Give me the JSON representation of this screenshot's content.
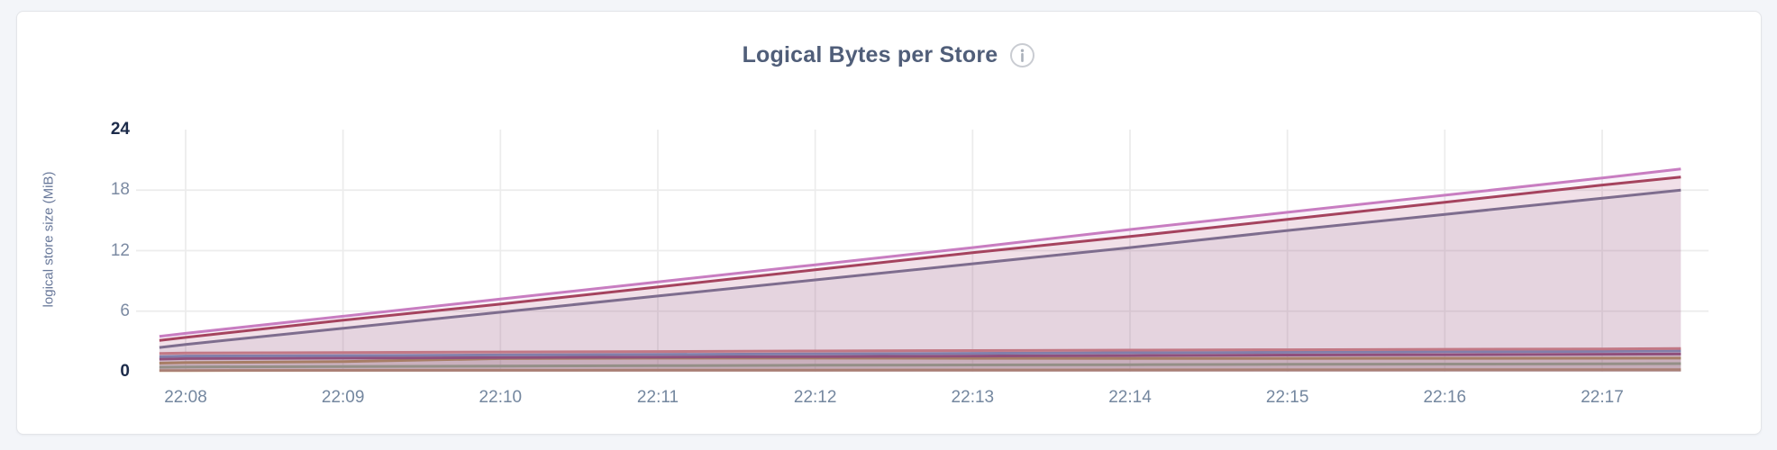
{
  "page": {
    "background_color": "#f3f5f9",
    "card_color": "#ffffff",
    "gridline_color": "#ececec"
  },
  "header": {
    "info_icon": "info-circle",
    "info_icon_color": "#c9ccd2"
  },
  "chart_data": {
    "type": "area",
    "title": "Logical Bytes per Store",
    "xlabel": "",
    "ylabel": "logical store size (MiB)",
    "ylim": [
      0,
      24
    ],
    "legend": "none",
    "grid": true,
    "y_axis": {
      "label": "logical store size (MiB)",
      "ticks": [
        {
          "label": "24",
          "value": 24,
          "bold": true
        },
        {
          "label": "18",
          "value": 18,
          "bold": false
        },
        {
          "label": "12",
          "value": 12,
          "bold": false
        },
        {
          "label": "6",
          "value": 6,
          "bold": false
        },
        {
          "label": "0",
          "value": 0,
          "bold": true
        }
      ],
      "gridline_values": [
        6,
        12,
        18
      ]
    },
    "x_axis": {
      "tick_labels": [
        "22:08",
        "22:09",
        "22:10",
        "22:11",
        "22:12",
        "22:13",
        "22:14",
        "22:15",
        "22:16",
        "22:17"
      ],
      "tick_interval_s": 60,
      "data_start_offset_s": -10,
      "data_end_offset_s": 570
    },
    "series": [
      {
        "id": "s1",
        "color": "#c87dc1",
        "start": 3.5,
        "values": [
          3.8,
          5.5,
          7.2,
          8.9,
          10.6,
          12.3,
          14.1,
          15.8,
          17.5,
          19.2
        ],
        "end": 20.1
      },
      {
        "id": "s2",
        "color": "#a23d53",
        "start": 3.1,
        "values": [
          3.4,
          5.1,
          6.7,
          8.4,
          10.1,
          11.8,
          13.4,
          15.1,
          16.8,
          18.5
        ],
        "end": 19.3
      },
      {
        "id": "s3",
        "color": "#71718f",
        "start": 2.4,
        "values": [
          2.7,
          4.3,
          5.9,
          7.5,
          9.1,
          10.7,
          12.3,
          14.0,
          15.6,
          17.2
        ],
        "end": 18.0
      },
      {
        "id": "s4",
        "color": "#d08083",
        "start": 1.8,
        "values": [
          1.85,
          1.9,
          1.95,
          2.0,
          2.05,
          2.1,
          2.14,
          2.18,
          2.22,
          2.26
        ],
        "end": 2.3
      },
      {
        "id": "s5",
        "color": "#6e8abc",
        "start": 1.5,
        "values": [
          1.55,
          1.6,
          1.66,
          1.71,
          1.77,
          1.82,
          1.88,
          1.93,
          1.98,
          2.02
        ],
        "end": 2.05
      },
      {
        "id": "s6",
        "color": "#833a70",
        "start": 1.25,
        "values": [
          1.3,
          1.35,
          1.4,
          1.45,
          1.5,
          1.55,
          1.6,
          1.65,
          1.69,
          1.73
        ],
        "end": 1.75
      },
      {
        "id": "s7",
        "color": "#b39346",
        "start": 0.85,
        "values": [
          0.9,
          1.0,
          1.3,
          1.35,
          1.35,
          1.33,
          1.32,
          1.32,
          1.33,
          1.34
        ],
        "end": 1.35
      },
      {
        "id": "s8",
        "color": "#8db98d",
        "start": 0.45,
        "values": [
          0.47,
          0.52,
          0.56,
          0.6,
          0.64,
          0.67,
          0.7,
          0.73,
          0.76,
          0.78
        ],
        "end": 0.8
      },
      {
        "id": "s9",
        "color": "#c19862",
        "start": 0.12,
        "values": [
          0.12,
          0.13,
          0.14,
          0.15,
          0.16,
          0.17,
          0.18,
          0.19,
          0.2,
          0.2
        ],
        "end": 0.2
      }
    ]
  }
}
